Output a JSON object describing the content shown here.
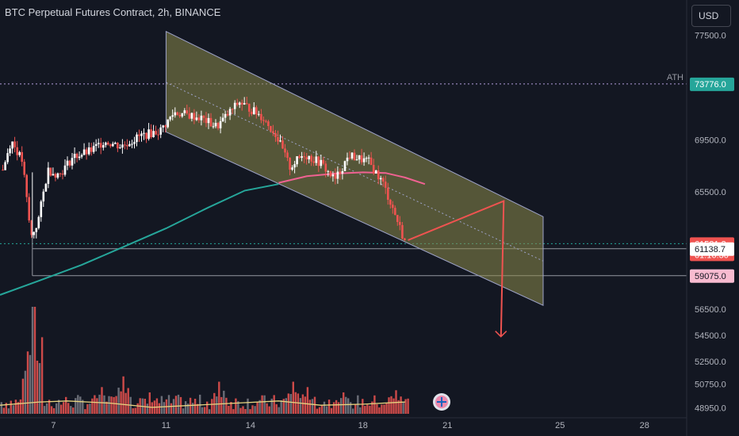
{
  "header": {
    "title": "BTC Perpetual Futures Contract, 2h, BINANCE",
    "currency_label": "USD"
  },
  "colors": {
    "background": "#131722",
    "up": "#ffffff",
    "down": "#ef5350",
    "ma_slow": "#26a69a",
    "ma_fast": "#f06292",
    "channel_fill": "#8c8a4a",
    "channel_stroke": "#9ea3c8",
    "projection": "#ef5350",
    "ath_line": "#b39ddb",
    "price_tag": "#26a69a",
    "level_tag": "#f8bbd0",
    "volume_ma": "#e8d580"
  },
  "chart_data": {
    "type": "candlestick",
    "symbol": "BTC Perpetual Futures Contract",
    "interval": "2h",
    "exchange": "BINANCE",
    "x_ticks": [
      "7",
      "11",
      "14",
      "18",
      "21",
      "25",
      "28"
    ],
    "x_tick_day": [
      7,
      11,
      14,
      18,
      21,
      25,
      28
    ],
    "x_range_day": [
      5.1,
      29.5
    ],
    "y_ticks": [
      77500,
      69500,
      65500,
      56500,
      54500,
      52500,
      50750,
      48950
    ],
    "y_tick_labels": [
      "77500.0",
      "69500.0",
      "65500.0",
      "56500.0",
      "54500.0",
      "52500.0",
      "50750.0",
      "48950.0"
    ],
    "y_range": [
      48300,
      79000
    ],
    "price_path": [
      {
        "day": 5.2,
        "price": 67200
      },
      {
        "day": 5.5,
        "price": 69500
      },
      {
        "day": 5.9,
        "price": 67800
      },
      {
        "day": 6.2,
        "price": 62000
      },
      {
        "day": 6.45,
        "price": 63200
      },
      {
        "day": 6.8,
        "price": 67200
      },
      {
        "day": 7.2,
        "price": 66800
      },
      {
        "day": 7.7,
        "price": 68200
      },
      {
        "day": 8.3,
        "price": 68600
      },
      {
        "day": 8.8,
        "price": 69400
      },
      {
        "day": 9.4,
        "price": 69000
      },
      {
        "day": 10.1,
        "price": 69800
      },
      {
        "day": 10.8,
        "price": 70200
      },
      {
        "day": 11.3,
        "price": 71600
      },
      {
        "day": 12.2,
        "price": 71200
      },
      {
        "day": 12.8,
        "price": 70500
      },
      {
        "day": 13.6,
        "price": 72400
      },
      {
        "day": 14.4,
        "price": 71300
      },
      {
        "day": 14.9,
        "price": 69900
      },
      {
        "day": 15.4,
        "price": 67400
      },
      {
        "day": 15.9,
        "price": 68400
      },
      {
        "day": 16.5,
        "price": 67700
      },
      {
        "day": 17.0,
        "price": 66400
      },
      {
        "day": 17.5,
        "price": 68300
      },
      {
        "day": 18.2,
        "price": 67800
      },
      {
        "day": 18.7,
        "price": 66200
      },
      {
        "day": 19.1,
        "price": 64000
      },
      {
        "day": 19.5,
        "price": 61600
      }
    ],
    "moving_average_slow": [
      {
        "day": 5.1,
        "price": 57600
      },
      {
        "day": 6.5,
        "price": 58700
      },
      {
        "day": 8.0,
        "price": 59900
      },
      {
        "day": 9.5,
        "price": 61300
      },
      {
        "day": 11.0,
        "price": 62700
      },
      {
        "day": 12.5,
        "price": 64300
      },
      {
        "day": 13.8,
        "price": 65600
      },
      {
        "day": 15.0,
        "price": 66100
      }
    ],
    "moving_average_fast": [
      {
        "day": 15.0,
        "price": 66200
      },
      {
        "day": 16.0,
        "price": 66700
      },
      {
        "day": 17.0,
        "price": 66900
      },
      {
        "day": 18.0,
        "price": 67000
      },
      {
        "day": 18.8,
        "price": 66950
      },
      {
        "day": 19.5,
        "price": 66600
      },
      {
        "day": 20.2,
        "price": 66100
      }
    ],
    "channel": {
      "top_start": {
        "day": 11.0,
        "price": 77800
      },
      "top_end": {
        "day": 24.4,
        "price": 63600
      },
      "bottom_start": {
        "day": 11.0,
        "price": 70100
      },
      "bottom_end": {
        "day": 24.4,
        "price": 56800
      }
    },
    "channel_mid_dotted": {
      "start": {
        "day": 11.0,
        "price": 73900
      },
      "end": {
        "day": 24.4,
        "price": 60200
      }
    },
    "projection": [
      {
        "day": 19.6,
        "price": 61800
      },
      {
        "day": 23.0,
        "price": 64800
      },
      {
        "day": 22.9,
        "price": 54400
      }
    ],
    "horizontal_levels": [
      {
        "price": 73776.0,
        "label": "73776.0",
        "note": "ATH",
        "style": "dotted"
      },
      {
        "price": 61531.3,
        "label": "61531.3",
        "countdown": "01:16:30",
        "style": "dotted"
      },
      {
        "price": 61138.7,
        "label": "61138.7",
        "style": "solid"
      },
      {
        "price": 59075.0,
        "label": "59075.0",
        "style": "solid"
      }
    ],
    "volume_max": 100,
    "volume_ma": [
      {
        "day": 5.1,
        "price": 8
      },
      {
        "day": 6.5,
        "price": 11
      },
      {
        "day": 7.5,
        "price": 12
      },
      {
        "day": 9.0,
        "price": 10
      },
      {
        "day": 10.5,
        "price": 6
      },
      {
        "day": 12.0,
        "price": 8
      },
      {
        "day": 13.5,
        "price": 10
      },
      {
        "day": 15.0,
        "price": 12
      },
      {
        "day": 16.5,
        "price": 8
      },
      {
        "day": 18.0,
        "price": 9
      },
      {
        "day": 19.5,
        "price": 11
      }
    ],
    "volume_spikes": [
      {
        "day": 6.3,
        "value": 100
      },
      {
        "day": 6.15,
        "value": 55
      },
      {
        "day": 8.7,
        "value": 25
      },
      {
        "day": 9.5,
        "value": 35
      },
      {
        "day": 10.4,
        "value": 20
      },
      {
        "day": 12.9,
        "value": 30
      },
      {
        "day": 15.5,
        "value": 30
      },
      {
        "day": 16.0,
        "value": 25
      },
      {
        "day": 17.3,
        "value": 20
      },
      {
        "day": 19.2,
        "value": 22
      }
    ]
  }
}
